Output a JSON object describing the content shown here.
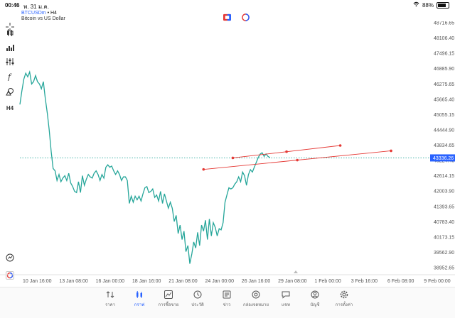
{
  "status_bar": {
    "time": "00:46",
    "date": "พ. 31 ม.ค.",
    "battery": "88%"
  },
  "chart_header": {
    "symbol": "BTCUSDm",
    "timeframe": "H4",
    "description": "Bitcoin vs US Dollar"
  },
  "toolbar": {
    "timeframe_label": "H4"
  },
  "colors": {
    "series_line": "#26a69a",
    "trendline": "#e53935",
    "accent": "#2962ff",
    "price_badge": "#2962ff"
  },
  "chart_data": {
    "type": "line",
    "y_ticks": [
      "48716.65",
      "48106.40",
      "47496.15",
      "46885.90",
      "46275.65",
      "45665.40",
      "45055.15",
      "44444.90",
      "43834.65",
      "43224.40",
      "42614.15",
      "42003.90",
      "41393.65",
      "40783.40",
      "40173.15",
      "39562.90",
      "38952.65"
    ],
    "x_ticks": [
      "10 Jan 16:00",
      "13 Jan 08:00",
      "16 Jan 00:00",
      "18 Jan 16:00",
      "21 Jan 08:00",
      "24 Jan 00:00",
      "26 Jan 16:00",
      "29 Jan 08:00",
      "1 Feb 00:00",
      "3 Feb 16:00",
      "6 Feb 08:00",
      "9 Feb 00:00"
    ],
    "current_price": "43336.26",
    "ylim": [
      38700,
      49000
    ],
    "series": [
      {
        "values": [
          45550,
          46100,
          46600,
          46850,
          46700,
          46900,
          46400,
          46500,
          46750,
          46500,
          46400,
          46200,
          46500,
          45800,
          45200,
          44500,
          43600,
          42900,
          42800,
          42400,
          42650,
          42350,
          42500,
          42600,
          42400,
          42700,
          42300,
          42150,
          41950,
          41900,
          42350,
          41900,
          42600,
          42200,
          42450,
          42650,
          42550,
          42500,
          42700,
          42800,
          42650,
          42400,
          42650,
          42500,
          42950,
          43050,
          42950,
          43000,
          42800,
          42650,
          42800,
          42650,
          42400,
          42550,
          42550,
          42400,
          41450,
          41750,
          41500,
          41750,
          41600,
          41750,
          41550,
          41850,
          42100,
          42150,
          41900,
          41950,
          42050,
          41700,
          41800,
          41550,
          41950,
          41450,
          41850,
          41550,
          41250,
          41500,
          41250,
          40700,
          40950,
          40200,
          40550,
          39950,
          40300,
          39450,
          39700,
          38950,
          39350,
          39850,
          39600,
          40250,
          39700,
          40550,
          40300,
          40750,
          39950,
          40800,
          40100,
          40650,
          40450,
          40100,
          40400,
          40350,
          40650,
          41500,
          41800,
          42100,
          42050,
          42100,
          42250,
          42350,
          42550,
          42350,
          42750,
          42600,
          42200,
          42650,
          42850,
          42750,
          42950,
          43150,
          43350,
          43500,
          43550,
          43400,
          43500,
          43400,
          43350
        ]
      }
    ],
    "trendlines": [
      {
        "from": [
          109,
          43336.26
        ],
        "to": [
          164,
          43850
        ]
      },
      {
        "from": [
          94,
          42860
        ],
        "to": [
          190,
          43630
        ]
      }
    ]
  },
  "bottom_nav": {
    "items": [
      {
        "label": "ราคา",
        "icon": "quotes-icon",
        "active": false
      },
      {
        "label": "กราฟ",
        "icon": "chart-icon",
        "active": true
      },
      {
        "label": "การซื้อขาย",
        "icon": "trade-icon",
        "active": false
      },
      {
        "label": "ประวัติ",
        "icon": "history-icon",
        "active": false
      },
      {
        "label": "ข่าว",
        "icon": "news-icon",
        "active": false
      },
      {
        "label": "กล่องจดหมาย",
        "icon": "mailbox-icon",
        "active": false
      },
      {
        "label": "แชท",
        "icon": "chat-icon",
        "active": false
      },
      {
        "label": "บัญชี",
        "icon": "account-icon",
        "active": false
      },
      {
        "label": "การตั้งค่า",
        "icon": "settings-icon",
        "active": false
      }
    ]
  }
}
